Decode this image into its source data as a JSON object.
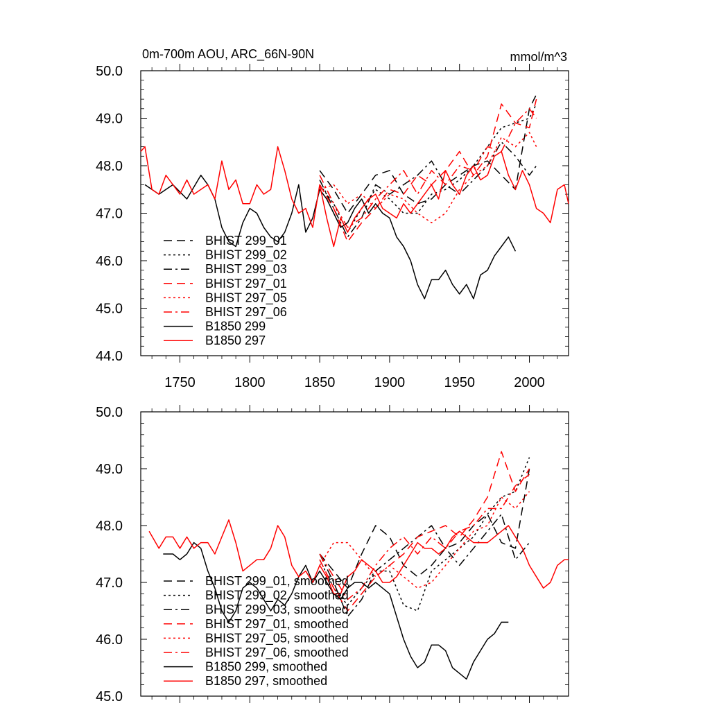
{
  "colors": {
    "black": "#000000",
    "red": "#ff0000"
  },
  "chart_data": [
    {
      "type": "line",
      "title": "0m-700m AOU, ARC_66N-90N",
      "units": "mmol/m^3",
      "xlim": [
        1722,
        2028
      ],
      "ylim": [
        44.0,
        50.0
      ],
      "xticks": [
        1750,
        1800,
        1850,
        1900,
        1950,
        2000
      ],
      "xtick_labels": [
        "1750",
        "1800",
        "1850",
        "1900",
        "1950",
        "2000"
      ],
      "yticks": [
        44.0,
        45.0,
        46.0,
        47.0,
        48.0,
        49.0,
        50.0
      ],
      "ytick_labels": [
        "44.0",
        "45.0",
        "46.0",
        "47.0",
        "48.0",
        "49.0",
        "50.0"
      ],
      "legend_position": "lower-left",
      "series": [
        {
          "name": "BHIST 299_01",
          "color": "#000000",
          "dash": "dash",
          "x": [
            1850,
            1860,
            1870,
            1880,
            1890,
            1900,
            1910,
            1920,
            1930,
            1940,
            1950,
            1960,
            1970,
            1980,
            1990,
            2000,
            2005
          ],
          "values": [
            47.9,
            47.5,
            47.0,
            47.4,
            47.8,
            47.9,
            47.4,
            47.2,
            47.3,
            47.6,
            47.8,
            48.0,
            48.1,
            47.8,
            47.5,
            49.2,
            49.5
          ]
        },
        {
          "name": "BHIST 299_02",
          "color": "#000000",
          "dash": "dot",
          "x": [
            1850,
            1860,
            1870,
            1880,
            1890,
            1900,
            1910,
            1920,
            1930,
            1940,
            1950,
            1960,
            1970,
            1980,
            1990,
            2000,
            2005
          ],
          "values": [
            47.6,
            47.2,
            46.6,
            47.1,
            47.5,
            47.3,
            47.0,
            47.0,
            47.4,
            47.5,
            47.7,
            48.0,
            48.4,
            48.8,
            48.9,
            49.0,
            49.3
          ]
        },
        {
          "name": "BHIST 299_03",
          "color": "#000000",
          "dash": "dashdot",
          "x": [
            1850,
            1860,
            1870,
            1880,
            1890,
            1900,
            1910,
            1920,
            1930,
            1940,
            1950,
            1960,
            1970,
            1980,
            1990,
            2000,
            2005
          ],
          "values": [
            47.7,
            47.1,
            46.5,
            46.9,
            47.6,
            47.4,
            47.6,
            47.8,
            48.1,
            47.6,
            47.4,
            47.7,
            48.0,
            48.5,
            48.2,
            47.8,
            48.0
          ]
        },
        {
          "name": "BHIST 297_01",
          "color": "#ff0000",
          "dash": "dash",
          "x": [
            1850,
            1860,
            1870,
            1880,
            1890,
            1900,
            1910,
            1920,
            1930,
            1940,
            1950,
            1960,
            1970,
            1980,
            1990,
            2000,
            2005
          ],
          "values": [
            47.6,
            47.1,
            46.4,
            46.8,
            47.1,
            47.5,
            47.4,
            47.8,
            47.6,
            47.9,
            48.3,
            47.8,
            48.2,
            49.3,
            48.9,
            48.8,
            49.4
          ]
        },
        {
          "name": "BHIST 297_05",
          "color": "#ff0000",
          "dash": "dot",
          "x": [
            1850,
            1860,
            1870,
            1880,
            1890,
            1900,
            1910,
            1920,
            1930,
            1940,
            1950,
            1960,
            1970,
            1980,
            1990,
            2000,
            2005
          ],
          "values": [
            47.5,
            47.6,
            47.2,
            47.4,
            47.1,
            47.4,
            47.3,
            47.0,
            46.8,
            47.0,
            47.5,
            47.8,
            48.0,
            48.6,
            48.4,
            48.7,
            48.4
          ]
        },
        {
          "name": "BHIST 297_06",
          "color": "#ff0000",
          "dash": "dashdot",
          "x": [
            1850,
            1860,
            1870,
            1880,
            1890,
            1900,
            1910,
            1920,
            1930,
            1940,
            1950,
            1960,
            1970,
            1980,
            1990,
            2000,
            2005
          ],
          "values": [
            47.8,
            47.2,
            46.7,
            46.9,
            47.3,
            47.6,
            47.9,
            47.4,
            47.9,
            47.6,
            48.0,
            47.9,
            48.4,
            48.3,
            48.9,
            49.2,
            49.0
          ]
        },
        {
          "name": "B1850 299",
          "color": "#000000",
          "dash": "solid",
          "x": [
            1725,
            1735,
            1745,
            1755,
            1765,
            1770,
            1775,
            1780,
            1785,
            1790,
            1795,
            1800,
            1805,
            1810,
            1815,
            1820,
            1825,
            1830,
            1835,
            1840,
            1845,
            1850,
            1855,
            1860,
            1865,
            1870,
            1875,
            1880,
            1885,
            1890,
            1895,
            1900,
            1905,
            1910,
            1915,
            1920,
            1925,
            1930,
            1935,
            1940,
            1945,
            1950,
            1955,
            1960,
            1965,
            1970,
            1975,
            1980,
            1985,
            1990
          ],
          "values": [
            47.6,
            47.4,
            47.6,
            47.3,
            47.8,
            47.6,
            47.3,
            46.7,
            46.4,
            46.3,
            46.8,
            47.1,
            47.0,
            46.7,
            46.5,
            46.4,
            46.6,
            47.0,
            47.6,
            46.6,
            46.9,
            47.5,
            47.3,
            47.0,
            46.7,
            46.8,
            47.1,
            47.3,
            47.0,
            47.2,
            47.0,
            46.9,
            46.5,
            46.3,
            46.0,
            45.5,
            45.2,
            45.6,
            45.6,
            45.8,
            45.5,
            45.3,
            45.5,
            45.2,
            45.7,
            45.8,
            46.1,
            46.3,
            46.5,
            46.2
          ]
        },
        {
          "name": "B1850 297",
          "color": "#ff0000",
          "dash": "solid",
          "x": [
            1722,
            1725,
            1730,
            1735,
            1740,
            1745,
            1750,
            1755,
            1760,
            1765,
            1770,
            1775,
            1780,
            1785,
            1790,
            1795,
            1800,
            1805,
            1810,
            1815,
            1820,
            1825,
            1830,
            1835,
            1840,
            1845,
            1850,
            1855,
            1860,
            1865,
            1870,
            1875,
            1880,
            1885,
            1890,
            1895,
            1900,
            1905,
            1910,
            1915,
            1920,
            1925,
            1930,
            1935,
            1940,
            1945,
            1950,
            1955,
            1960,
            1965,
            1970,
            1975,
            1980,
            1985,
            1990,
            1995,
            2000,
            2005,
            2010,
            2015,
            2020,
            2025,
            2028
          ],
          "values": [
            48.3,
            48.4,
            47.5,
            47.4,
            47.8,
            47.6,
            47.4,
            47.7,
            47.4,
            47.5,
            47.6,
            47.3,
            48.1,
            47.5,
            47.7,
            47.2,
            47.2,
            47.6,
            47.4,
            47.5,
            48.4,
            47.9,
            47.3,
            47.0,
            47.1,
            46.7,
            47.6,
            46.9,
            46.3,
            46.9,
            46.6,
            46.9,
            47.1,
            47.3,
            47.4,
            47.1,
            47.0,
            46.9,
            47.2,
            47.0,
            47.2,
            47.4,
            47.6,
            47.3,
            47.9,
            47.6,
            47.4,
            47.8,
            48.0,
            47.7,
            47.8,
            48.2,
            48.3,
            47.8,
            47.5,
            47.9,
            47.6,
            47.1,
            47.0,
            46.8,
            47.5,
            47.6,
            47.2
          ]
        }
      ]
    },
    {
      "type": "line",
      "title": "",
      "xlim": [
        1722,
        2028
      ],
      "ylim": [
        45.0,
        50.0
      ],
      "xticks": [
        1750,
        1800,
        1850,
        1900,
        1950,
        2000
      ],
      "xtick_labels": [],
      "yticks": [
        45.0,
        46.0,
        47.0,
        48.0,
        49.0,
        50.0
      ],
      "ytick_labels": [
        "45.0",
        "46.0",
        "47.0",
        "48.0",
        "49.0",
        "50.0"
      ],
      "legend_position": "lower-left",
      "series": [
        {
          "name": "BHIST 299_01, smoothed",
          "color": "#000000",
          "dash": "dash",
          "x": [
            1850,
            1860,
            1870,
            1880,
            1890,
            1900,
            1910,
            1920,
            1930,
            1940,
            1950,
            1960,
            1970,
            1980,
            1990,
            2000
          ],
          "values": [
            47.5,
            47.2,
            46.9,
            47.5,
            48.0,
            47.8,
            47.3,
            47.1,
            47.3,
            47.6,
            47.7,
            48.0,
            48.2,
            47.7,
            47.6,
            49.0
          ]
        },
        {
          "name": "BHIST 299_02, smoothed",
          "color": "#000000",
          "dash": "dot",
          "x": [
            1850,
            1860,
            1870,
            1880,
            1890,
            1900,
            1910,
            1920,
            1930,
            1940,
            1950,
            1960,
            1970,
            1980,
            1990,
            2000
          ],
          "values": [
            47.4,
            46.9,
            46.6,
            46.9,
            47.2,
            47.2,
            46.6,
            46.5,
            47.2,
            47.4,
            47.6,
            47.8,
            48.2,
            48.5,
            48.6,
            49.2
          ]
        },
        {
          "name": "BHIST 299_03, smoothed",
          "color": "#000000",
          "dash": "dashdot",
          "x": [
            1850,
            1860,
            1870,
            1880,
            1890,
            1900,
            1910,
            1920,
            1930,
            1940,
            1950,
            1960,
            1970,
            1980,
            1990,
            2000
          ],
          "values": [
            47.5,
            47.0,
            46.4,
            46.7,
            47.2,
            47.4,
            47.6,
            47.8,
            48.0,
            47.6,
            47.3,
            47.6,
            47.9,
            48.2,
            47.4,
            47.7
          ]
        },
        {
          "name": "BHIST 297_01, smoothed",
          "color": "#ff0000",
          "dash": "dash",
          "x": [
            1850,
            1860,
            1870,
            1880,
            1890,
            1900,
            1910,
            1920,
            1930,
            1940,
            1950,
            1960,
            1970,
            1980,
            1990,
            2000
          ],
          "values": [
            47.4,
            46.9,
            46.5,
            46.8,
            47.1,
            47.3,
            47.5,
            47.8,
            47.9,
            48.0,
            47.8,
            48.1,
            48.5,
            49.3,
            48.6,
            49.0
          ]
        },
        {
          "name": "BHIST 297_05, smoothed",
          "color": "#ff0000",
          "dash": "dot",
          "x": [
            1850,
            1860,
            1870,
            1880,
            1890,
            1900,
            1910,
            1920,
            1930,
            1940,
            1950,
            1960,
            1970,
            1980,
            1990,
            2000
          ],
          "values": [
            47.3,
            47.7,
            47.7,
            47.4,
            47.1,
            47.3,
            47.1,
            46.9,
            47.0,
            47.3,
            47.6,
            47.9,
            48.0,
            48.5,
            48.3,
            48.6
          ]
        },
        {
          "name": "BHIST 297_06, smoothed",
          "color": "#ff0000",
          "dash": "dashdot",
          "x": [
            1850,
            1860,
            1870,
            1880,
            1890,
            1900,
            1910,
            1920,
            1930,
            1940,
            1950,
            1960,
            1970,
            1980,
            1990,
            2000
          ],
          "values": [
            47.5,
            47.1,
            46.7,
            46.9,
            47.3,
            47.6,
            47.8,
            47.5,
            47.8,
            47.6,
            47.9,
            48.0,
            48.3,
            48.3,
            48.7,
            48.9
          ]
        },
        {
          "name": "B1850 299, smoothed",
          "color": "#000000",
          "dash": "solid",
          "x": [
            1738,
            1745,
            1750,
            1755,
            1760,
            1765,
            1770,
            1775,
            1780,
            1785,
            1790,
            1795,
            1800,
            1805,
            1810,
            1815,
            1820,
            1825,
            1830,
            1835,
            1840,
            1845,
            1850,
            1855,
            1860,
            1865,
            1870,
            1875,
            1880,
            1885,
            1890,
            1895,
            1900,
            1905,
            1910,
            1915,
            1920,
            1925,
            1930,
            1935,
            1940,
            1945,
            1950,
            1955,
            1960,
            1965,
            1970,
            1975,
            1980,
            1985
          ],
          "values": [
            47.5,
            47.5,
            47.4,
            47.5,
            47.7,
            47.6,
            47.2,
            46.9,
            46.5,
            46.3,
            46.5,
            46.9,
            47.0,
            46.9,
            46.7,
            46.5,
            46.7,
            46.6,
            46.8,
            47.1,
            47.3,
            47.0,
            47.2,
            47.0,
            46.8,
            46.7,
            46.9,
            47.0,
            47.0,
            46.9,
            47.0,
            46.9,
            46.8,
            46.4,
            46.0,
            45.7,
            45.5,
            45.6,
            45.9,
            45.9,
            45.8,
            45.5,
            45.4,
            45.3,
            45.6,
            45.8,
            46.0,
            46.1,
            46.3,
            46.3
          ]
        },
        {
          "name": "B1850 297, smoothed",
          "color": "#ff0000",
          "dash": "solid",
          "x": [
            1728,
            1735,
            1740,
            1745,
            1750,
            1755,
            1760,
            1765,
            1770,
            1775,
            1780,
            1785,
            1790,
            1795,
            1800,
            1805,
            1810,
            1815,
            1820,
            1825,
            1830,
            1835,
            1840,
            1845,
            1850,
            1855,
            1860,
            1865,
            1870,
            1875,
            1880,
            1885,
            1890,
            1895,
            1900,
            1905,
            1910,
            1915,
            1920,
            1925,
            1930,
            1935,
            1940,
            1945,
            1950,
            1955,
            1960,
            1965,
            1970,
            1975,
            1980,
            1985,
            1990,
            1995,
            2000,
            2005,
            2010,
            2015,
            2020,
            2025,
            2028
          ],
          "values": [
            47.9,
            47.6,
            47.8,
            47.8,
            47.6,
            47.8,
            47.6,
            47.7,
            47.7,
            47.5,
            47.8,
            48.1,
            47.7,
            47.2,
            47.3,
            47.4,
            47.4,
            47.6,
            48.0,
            47.8,
            47.3,
            47.1,
            47.2,
            47.0,
            47.3,
            47.1,
            46.8,
            46.8,
            47.1,
            47.2,
            47.4,
            47.3,
            47.2,
            47.0,
            47.0,
            47.1,
            47.3,
            47.5,
            47.7,
            47.6,
            47.6,
            47.5,
            47.6,
            47.8,
            47.9,
            47.8,
            47.7,
            47.7,
            47.7,
            47.8,
            47.9,
            48.0,
            47.8,
            47.6,
            47.3,
            47.1,
            46.9,
            47.0,
            47.3,
            47.4,
            47.4
          ]
        }
      ]
    }
  ]
}
